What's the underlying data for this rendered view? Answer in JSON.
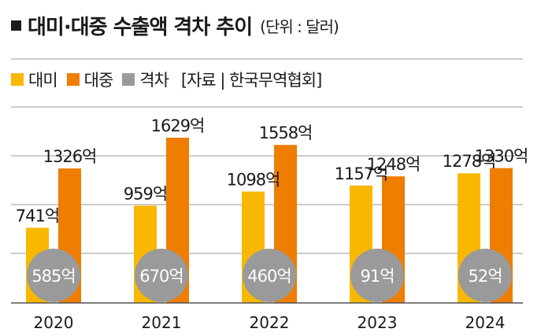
{
  "header": {
    "title": "대미·대중 수출액 격차 추이",
    "subtitle": "(단위 : 달러)"
  },
  "legend": {
    "source": "[자료 | 한국무역협회]"
  },
  "colors": {
    "us": "#f9b800",
    "china": "#ee7d00",
    "gap": "#9a9a9a",
    "grid": "#9a9a9a"
  },
  "chart_data": {
    "type": "bar",
    "title": "대미·대중 수출액 격차 추이",
    "unit_label": "(단위 : 달러)",
    "categories": [
      "2020",
      "2021",
      "2022",
      "2023",
      "2024"
    ],
    "series": [
      {
        "name": "대미",
        "values": [
          741,
          959,
          1098,
          1157,
          1278
        ],
        "labels": [
          "741억",
          "959억",
          "1098억",
          "1157억",
          "1278억"
        ]
      },
      {
        "name": "대중",
        "values": [
          1326,
          1629,
          1558,
          1248,
          1330
        ],
        "labels": [
          "1326억",
          "1629억",
          "1558억",
          "1248억",
          "1330억"
        ]
      },
      {
        "name": "격차",
        "values": [
          585,
          670,
          460,
          91,
          52
        ],
        "labels": [
          "585억",
          "670억",
          "460억",
          "91억",
          "52억"
        ]
      }
    ],
    "ylim": [
      0,
      1800
    ],
    "grid": true,
    "legend_position": "top-left",
    "source": "[자료 | 한국무역협회]"
  }
}
